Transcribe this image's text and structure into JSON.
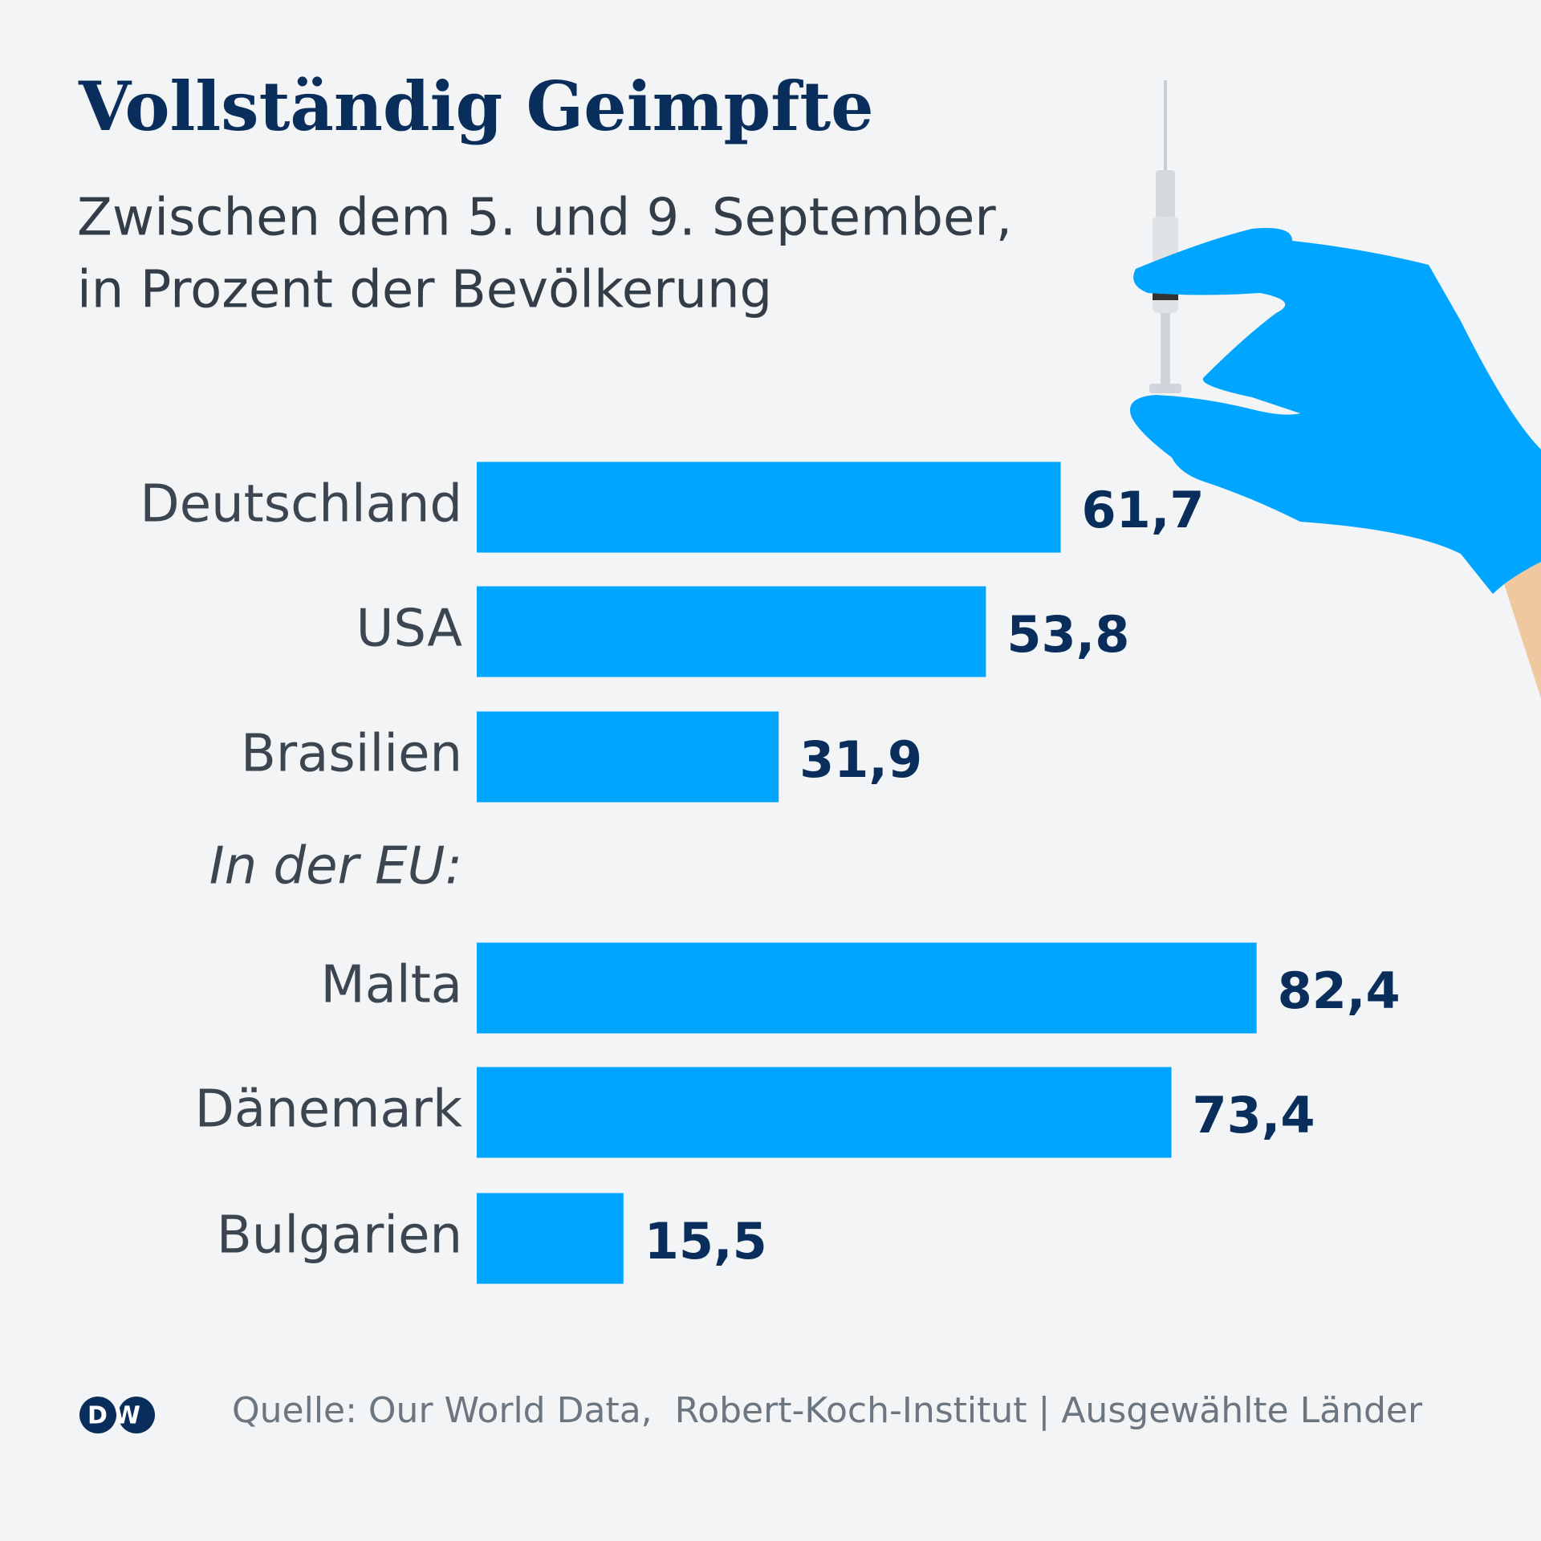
{
  "chart_data": {
    "type": "bar",
    "orientation": "horizontal",
    "title": "Vollständig Geimpfte",
    "subtitle": [
      "Zwischen dem 5. und 9. September,",
      "in Prozent der Bevölkerung"
    ],
    "categories": [
      "Deutschland",
      "USA",
      "Brasilien",
      "In der EU:",
      "Malta",
      "Dänemark",
      "Bulgarien"
    ],
    "values": [
      61.7,
      53.8,
      31.9,
      null,
      82.4,
      73.4,
      15.5
    ],
    "value_labels": [
      "61,7",
      "53,8",
      "31,9",
      null,
      "82,4",
      "73,4",
      "15,5"
    ],
    "color": "#00a5ff",
    "source": "Quelle: Our World Data,  Robert-Koch-Institut | Ausgewählte Länder",
    "logo": "DW"
  }
}
